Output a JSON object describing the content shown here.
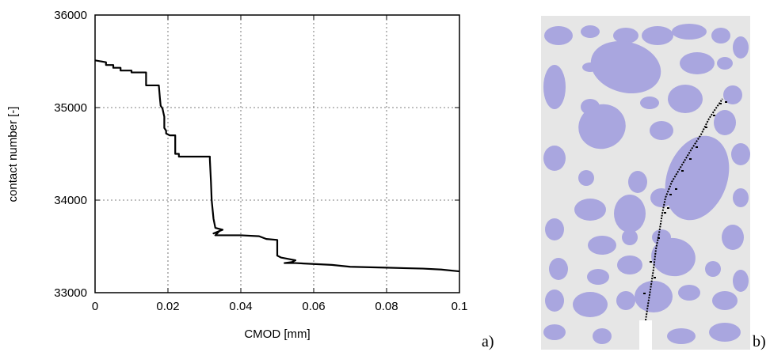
{
  "chart_data": {
    "type": "line",
    "xlabel": "CMOD [mm]",
    "ylabel": "contact number [-]",
    "xlim": [
      0,
      0.1
    ],
    "ylim": [
      33000,
      36000
    ],
    "xticks": [
      0,
      0.02,
      0.04,
      0.06,
      0.08,
      0.1
    ],
    "xtick_labels": [
      "0",
      "0.02",
      "0.04",
      "0.06",
      "0.08",
      "0.1"
    ],
    "yticks": [
      33000,
      34000,
      35000,
      36000
    ],
    "ytick_labels": [
      "33000",
      "34000",
      "35000",
      "36000"
    ],
    "grid": true,
    "series": [
      {
        "color": "#000000",
        "x": [
          0,
          0.003,
          0.003,
          0.005,
          0.005,
          0.007,
          0.007,
          0.01,
          0.01,
          0.014,
          0.014,
          0.0175,
          0.0178,
          0.018,
          0.0185,
          0.019,
          0.019,
          0.0195,
          0.0195,
          0.0205,
          0.022,
          0.022,
          0.023,
          0.023,
          0.0315,
          0.0315,
          0.0318,
          0.032,
          0.0325,
          0.033,
          0.035,
          0.0325,
          0.034,
          0.033,
          0.04,
          0.045,
          0.047,
          0.05,
          0.05,
          0.051,
          0.055,
          0.054,
          0.052,
          0.055,
          0.06,
          0.065,
          0.07,
          0.08,
          0.09,
          0.095,
          0.1
        ],
        "y": [
          35510,
          35490,
          35460,
          35460,
          35430,
          35430,
          35400,
          35400,
          35380,
          35380,
          35240,
          35240,
          35100,
          35020,
          34990,
          34900,
          34780,
          34750,
          34720,
          34700,
          34700,
          34500,
          34500,
          34470,
          34470,
          34440,
          34200,
          34000,
          33800,
          33700,
          33680,
          33640,
          33660,
          33620,
          33620,
          33610,
          33580,
          33570,
          33400,
          33380,
          33350,
          33330,
          33320,
          33320,
          33310,
          33300,
          33280,
          33270,
          33260,
          33250,
          33230
        ]
      }
    ]
  },
  "labels": {
    "panel_a": "a)",
    "panel_b": "b)"
  },
  "image_b": {
    "background_color": "#e6e6e6",
    "aggregate_color": "#a9a6df",
    "crack_color": "#000000"
  }
}
